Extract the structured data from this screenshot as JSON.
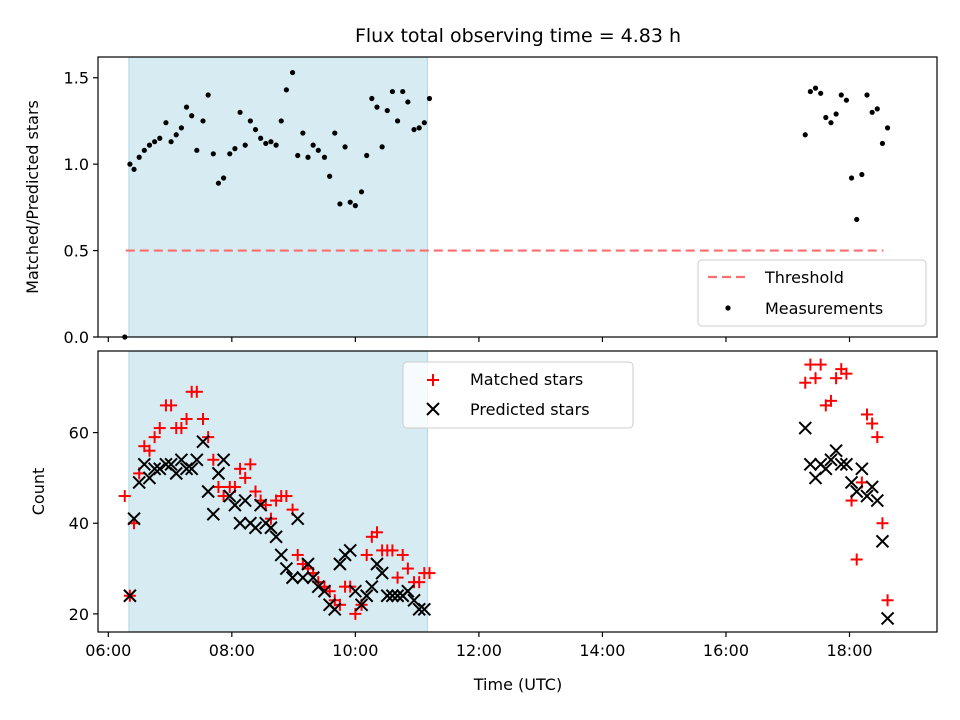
{
  "chart_data": [
    {
      "type": "scatter",
      "title": "Flux total observing time = 4.83 h",
      "xlabel": "",
      "ylabel": "Matched/Predicted stars",
      "ylim": [
        0,
        1.62
      ],
      "yticks": [
        0.0,
        0.5,
        1.0,
        1.5
      ],
      "ytick_labels": [
        "0.0",
        "0.5",
        "1.0",
        "1.5"
      ],
      "grid": false,
      "legend_position": "lower-right",
      "shaded_span": {
        "x": [
          "06:20",
          "11:10"
        ],
        "color": "#add8e6"
      },
      "series": [
        {
          "name": "Threshold",
          "kind": "line",
          "style": "dashed",
          "color": "#ff6e6e",
          "x": [
            "06:17",
            "18:33"
          ],
          "y": [
            0.5,
            0.5
          ]
        },
        {
          "name": "Measurements",
          "kind": "points",
          "color": "#000000",
          "x": [
            "06:16",
            "06:21",
            "06:25",
            "06:30",
            "06:35",
            "06:40",
            "06:45",
            "06:50",
            "06:56",
            "07:01",
            "07:06",
            "07:11",
            "07:16",
            "07:21",
            "07:26",
            "07:32",
            "07:37",
            "07:42",
            "07:47",
            "07:52",
            "07:58",
            "08:03",
            "08:08",
            "08:13",
            "08:18",
            "08:23",
            "08:28",
            "08:33",
            "08:38",
            "08:43",
            "08:48",
            "08:53",
            "08:59",
            "09:04",
            "09:09",
            "09:14",
            "09:19",
            "09:24",
            "09:30",
            "09:35",
            "09:40",
            "09:45",
            "09:50",
            "09:55",
            "10:00",
            "10:06",
            "10:11",
            "10:16",
            "10:21",
            "10:26",
            "10:31",
            "10:36",
            "10:41",
            "10:46",
            "10:51",
            "10:57",
            "11:02",
            "11:07",
            "11:12",
            "17:17",
            "17:22",
            "17:27",
            "17:32",
            "17:37",
            "17:42",
            "17:47",
            "17:52",
            "17:57",
            "18:02",
            "18:07",
            "18:12",
            "18:17",
            "18:22",
            "18:27",
            "18:32",
            "18:37"
          ],
          "y": [
            0.0,
            1.0,
            0.97,
            1.04,
            1.08,
            1.11,
            1.13,
            1.15,
            1.24,
            1.13,
            1.17,
            1.21,
            1.33,
            1.28,
            1.08,
            1.25,
            1.4,
            1.06,
            0.89,
            0.92,
            1.06,
            1.09,
            1.3,
            1.11,
            1.25,
            1.2,
            1.15,
            1.12,
            1.13,
            1.11,
            1.25,
            1.43,
            1.53,
            1.05,
            1.18,
            1.04,
            1.11,
            1.08,
            1.04,
            0.93,
            1.18,
            0.77,
            1.1,
            0.78,
            0.76,
            0.84,
            1.05,
            1.38,
            1.33,
            1.1,
            1.31,
            1.42,
            1.25,
            1.42,
            1.36,
            1.2,
            1.21,
            1.24,
            1.38,
            1.17,
            1.42,
            1.44,
            1.41,
            1.27,
            1.24,
            1.29,
            1.4,
            1.37,
            0.92,
            0.68,
            0.94,
            1.4,
            1.3,
            1.32,
            1.12,
            1.21
          ]
        }
      ]
    },
    {
      "type": "scatter",
      "title": "",
      "xlabel": "Time (UTC)",
      "ylabel": "Count",
      "xlim": [
        "05:50",
        "19:25"
      ],
      "xticks": [
        "06:00",
        "08:00",
        "10:00",
        "12:00",
        "14:00",
        "16:00",
        "18:00"
      ],
      "ylim": [
        16,
        78
      ],
      "yticks": [
        20,
        40,
        60
      ],
      "ytick_labels": [
        "20",
        "40",
        "60"
      ],
      "grid": false,
      "legend_position": "upper-center",
      "shaded_span": {
        "x": [
          "06:20",
          "11:10"
        ],
        "color": "#add8e6"
      },
      "x": [
        "06:16",
        "06:21",
        "06:25",
        "06:30",
        "06:35",
        "06:40",
        "06:45",
        "06:50",
        "06:56",
        "07:01",
        "07:06",
        "07:11",
        "07:16",
        "07:21",
        "07:26",
        "07:32",
        "07:37",
        "07:42",
        "07:47",
        "07:52",
        "07:58",
        "08:03",
        "08:08",
        "08:13",
        "08:18",
        "08:23",
        "08:28",
        "08:33",
        "08:38",
        "08:43",
        "08:48",
        "08:53",
        "08:59",
        "09:04",
        "09:09",
        "09:14",
        "09:19",
        "09:24",
        "09:30",
        "09:35",
        "09:40",
        "09:45",
        "09:50",
        "09:55",
        "10:00",
        "10:06",
        "10:11",
        "10:16",
        "10:21",
        "10:26",
        "10:31",
        "10:36",
        "10:41",
        "10:46",
        "10:51",
        "10:57",
        "11:02",
        "11:07",
        "11:12",
        "17:17",
        "17:22",
        "17:27",
        "17:32",
        "17:37",
        "17:42",
        "17:47",
        "17:52",
        "17:57",
        "18:02",
        "18:07",
        "18:12",
        "18:17",
        "18:22",
        "18:27",
        "18:32",
        "18:37"
      ],
      "series": [
        {
          "name": "Matched stars",
          "marker": "plus",
          "color": "#ff0000",
          "values": [
            46,
            24,
            40,
            51,
            57,
            56,
            59,
            61,
            66,
            66,
            61,
            61,
            63,
            69,
            69,
            63,
            59,
            54,
            48,
            46,
            48,
            48,
            52,
            50,
            53,
            47,
            45,
            44,
            41,
            45,
            46,
            46,
            43,
            33,
            31,
            30,
            29,
            27,
            26,
            25,
            23,
            22,
            26,
            26,
            20,
            22,
            33,
            37,
            38,
            34,
            34,
            34,
            28,
            33,
            30,
            27,
            27,
            29,
            29,
            71,
            75,
            72,
            75,
            66,
            67,
            72,
            74,
            73,
            45,
            32,
            49,
            64,
            62,
            59,
            40,
            23
          ]
        },
        {
          "name": "Predicted stars",
          "marker": "x",
          "color": "#000000",
          "values": [
            null,
            24,
            41,
            49,
            53,
            50,
            52,
            52,
            53,
            53,
            51,
            54,
            52,
            52,
            54,
            58,
            47,
            42,
            51,
            54,
            46,
            44,
            40,
            45,
            40,
            39,
            44,
            40,
            39,
            37,
            33,
            30,
            28,
            41,
            28,
            31,
            28,
            26,
            25,
            22,
            21,
            31,
            33,
            34,
            25,
            22,
            24,
            26,
            31,
            29,
            24,
            24,
            24,
            24,
            25,
            23,
            21,
            21,
            null,
            61,
            53,
            50,
            53,
            52,
            54,
            56,
            53,
            53,
            49,
            47,
            52,
            46,
            48,
            45,
            36,
            19
          ]
        }
      ]
    }
  ]
}
